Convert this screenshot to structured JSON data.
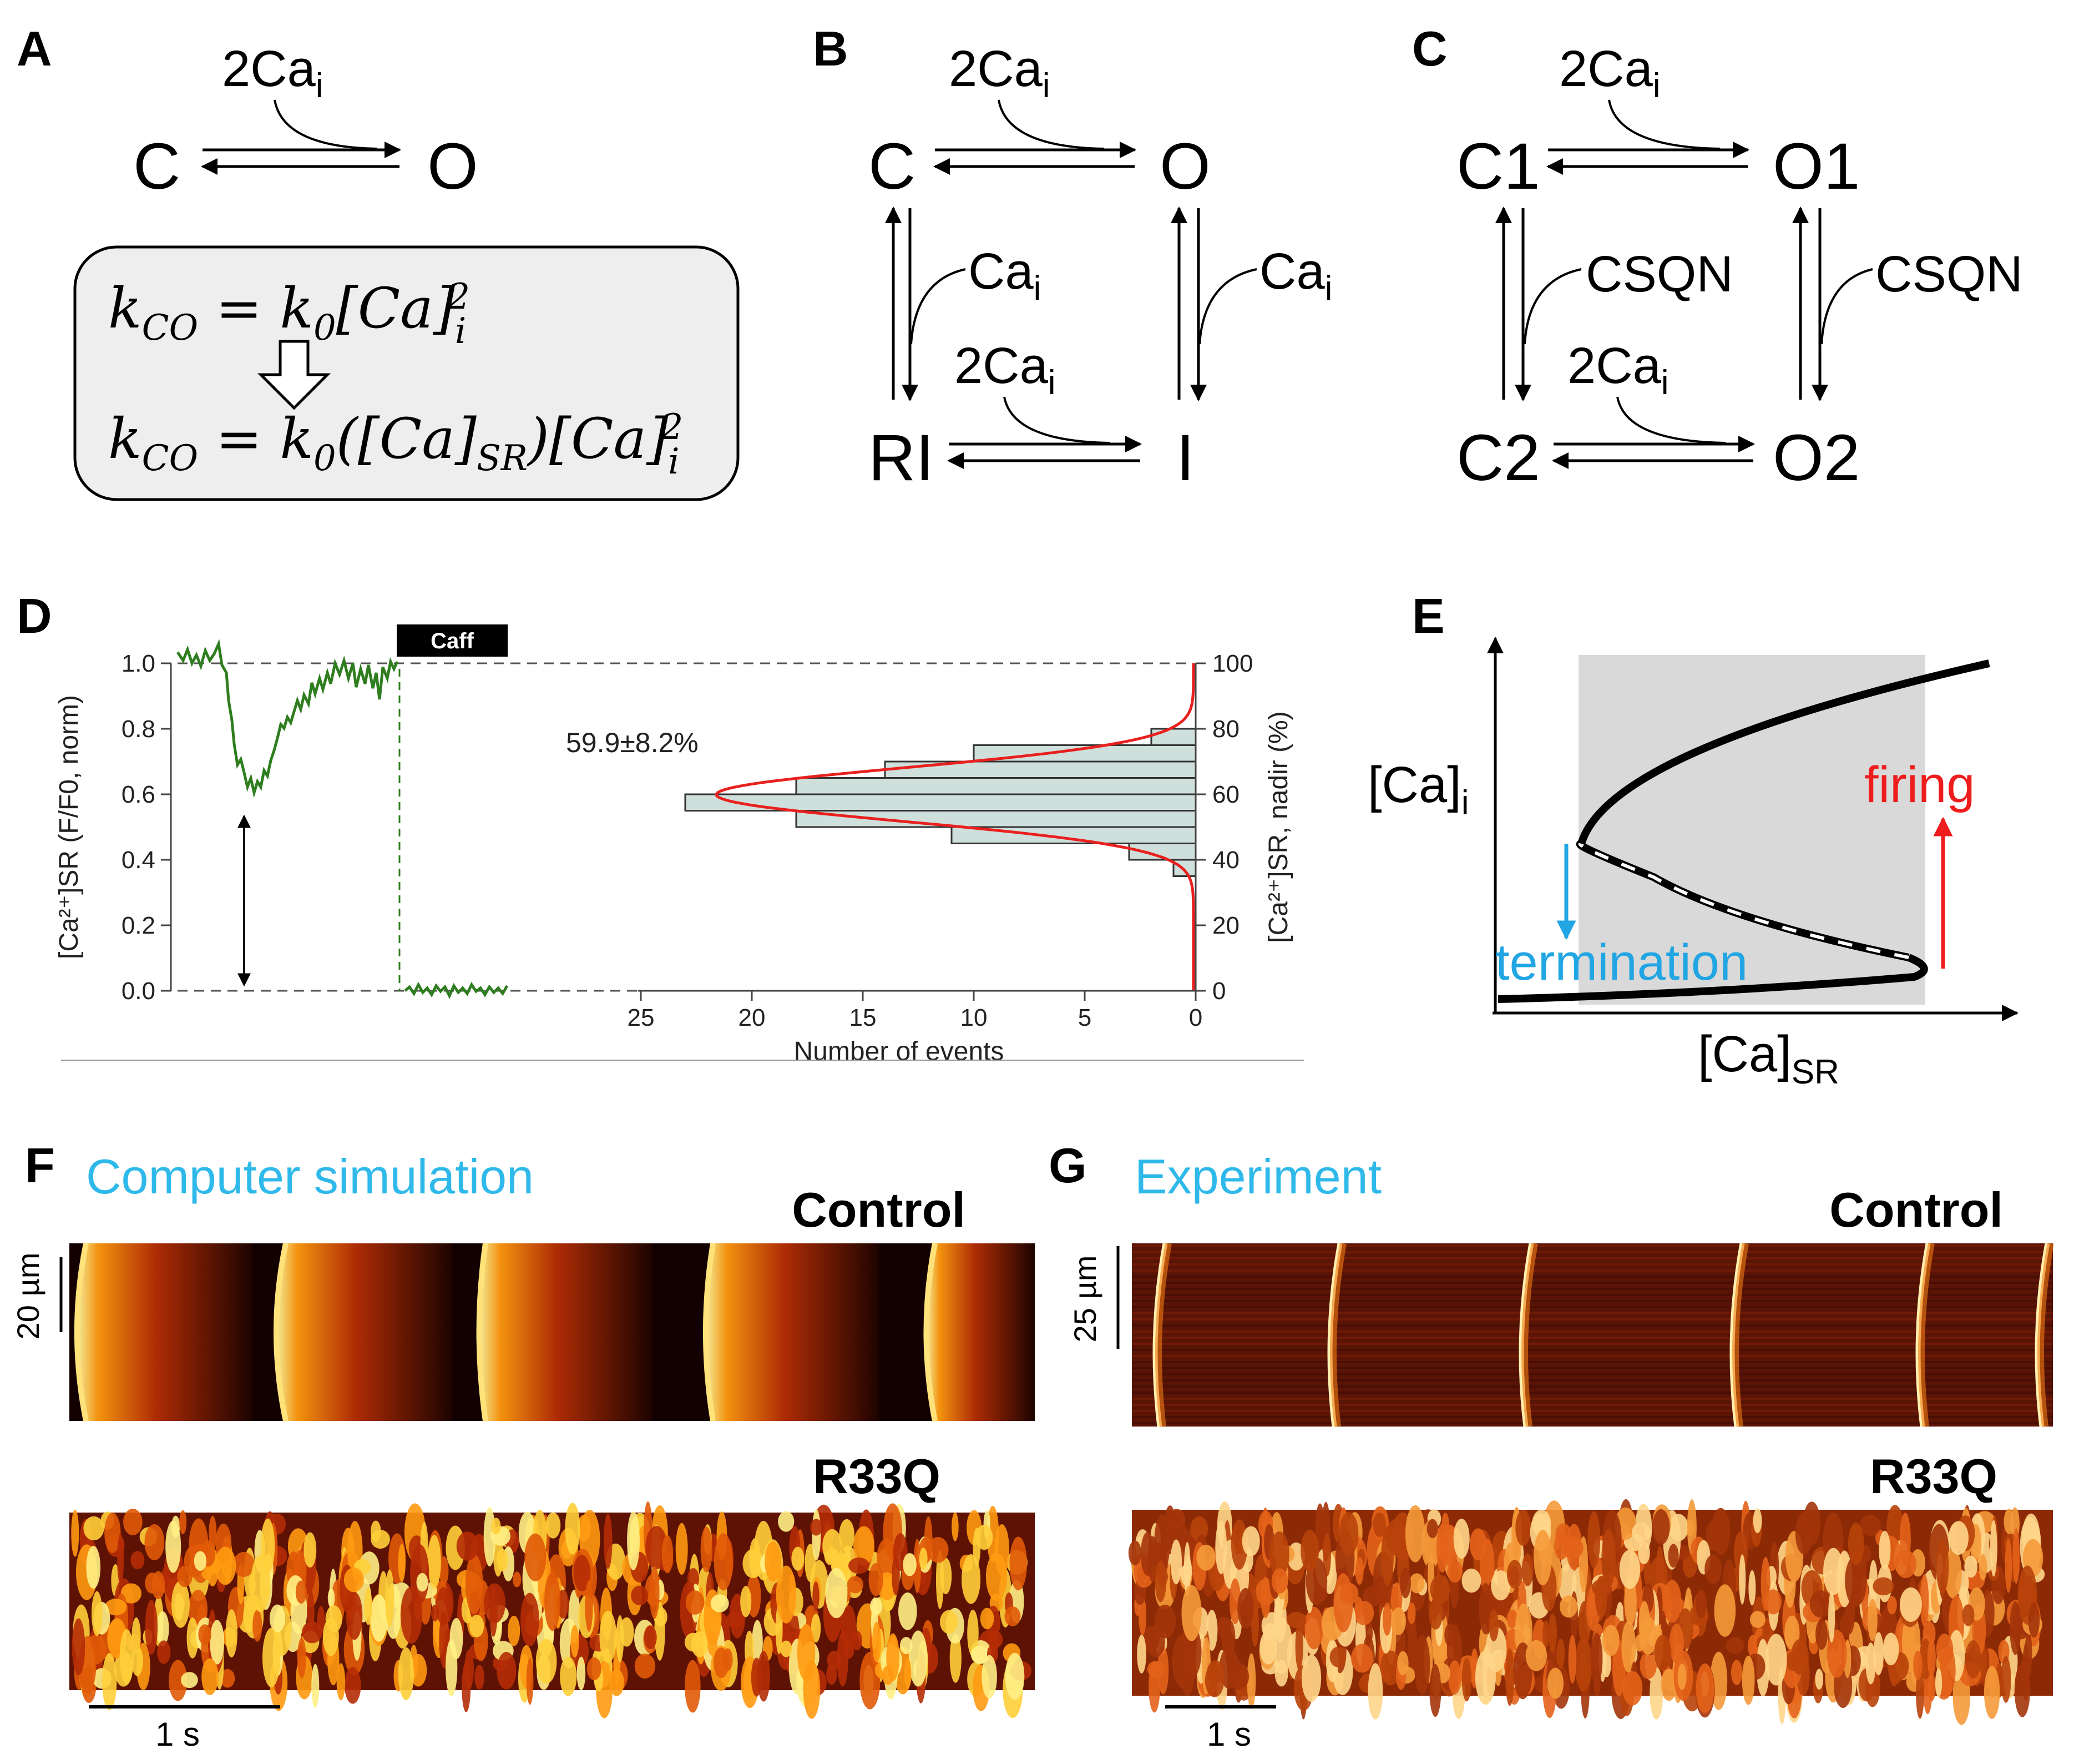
{
  "panels": {
    "A": {
      "label": "A",
      "ligand": "2Ca",
      "ligand_sub": "i",
      "state_closed": "C",
      "state_open": "O",
      "eq1": {
        "k": "k",
        "k_sub": "CO",
        "eq": " = ",
        "k0": "k",
        "k0_sub": "0",
        "rest": "[Ca]",
        "sub": "i",
        "sup": "2"
      },
      "eq2": {
        "k": "k",
        "k_sub": "CO",
        "eq": " = ",
        "k0": "k",
        "k0_sub": "0",
        "mid": "([Ca]",
        "mid_sub": "SR",
        "tail": ")[Ca]",
        "sub": "i",
        "sup": "2"
      }
    },
    "B": {
      "label": "B",
      "states": {
        "C": "C",
        "O": "O",
        "RI": "RI",
        "I": "I"
      },
      "top_ligand": "2Ca",
      "top_ligand_sub": "i",
      "left_ligand": "Ca",
      "left_ligand_sub": "i",
      "right_ligand": "Ca",
      "right_ligand_sub": "i",
      "bottom_ligand": "2Ca",
      "bottom_ligand_sub": "i"
    },
    "C": {
      "label": "C",
      "states": {
        "C1": "C1",
        "O1": "O1",
        "C2": "C2",
        "O2": "O2"
      },
      "top_ligand": "2Ca",
      "top_ligand_sub": "i",
      "left_ligand": "CSQN",
      "right_ligand": "CSQN",
      "bottom_ligand": "2Ca",
      "bottom_ligand_sub": "i"
    },
    "D": {
      "label": "D",
      "caff_label": "Caff",
      "annotation": "59.9±8.2%",
      "left_axis_label": "[Ca²⁺]SR (F/F0, norm)",
      "left_ticks": [
        "0.0",
        "0.2",
        "0.4",
        "0.6",
        "0.8",
        "1.0"
      ],
      "right_axis_label": "[Ca²⁺]SR, nadir (%)",
      "right_ticks": [
        "0",
        "20",
        "40",
        "60",
        "80",
        "100"
      ],
      "x_ticks": [
        "25",
        "20",
        "15",
        "10",
        "5",
        "0"
      ],
      "x_label": "Number of events",
      "colors": {
        "trace": "#2e7d1e",
        "fit": "#e8201e",
        "bars": "#cfdfdc"
      }
    },
    "E": {
      "label": "E",
      "y_label": "[Ca]",
      "y_label_sub": "i",
      "x_label": "[Ca]",
      "x_label_sub": "SR",
      "firing_label": "firing",
      "termination_label": "termination",
      "colors": {
        "firing": "#ee1c1c",
        "termination": "#22a5e3",
        "shade": "#d9d9d9"
      }
    },
    "F": {
      "label": "F",
      "title": "Computer simulation",
      "control_label": "Control",
      "mutant_label": "R33Q",
      "scale_y": "20 µm",
      "scale_x": "1 s"
    },
    "G": {
      "label": "G",
      "title": "Experiment",
      "control_label": "Control",
      "mutant_label": "R33Q",
      "scale_y": "25 µm",
      "scale_x": "1 s"
    }
  },
  "chart_data": {
    "type": "bar",
    "orientation": "horizontal",
    "categories": [
      37.5,
      42.5,
      47.5,
      52.5,
      57.5,
      62.5,
      67.5,
      72.5,
      77.5
    ],
    "values": [
      1,
      3,
      11,
      18,
      23,
      18,
      14,
      10,
      2
    ],
    "fit": "gaussian",
    "fit_mean": 59.9,
    "fit_sd": 8.2,
    "xlabel": "Number of events",
    "ylabel": "[Ca²⁺]SR, nadir (%)",
    "xlim": [
      25,
      0
    ],
    "ylim": [
      0,
      100
    ],
    "trace_ylim": [
      0.0,
      1.0
    ],
    "trace_label": "[Ca²⁺]SR (F/F0, norm)"
  }
}
